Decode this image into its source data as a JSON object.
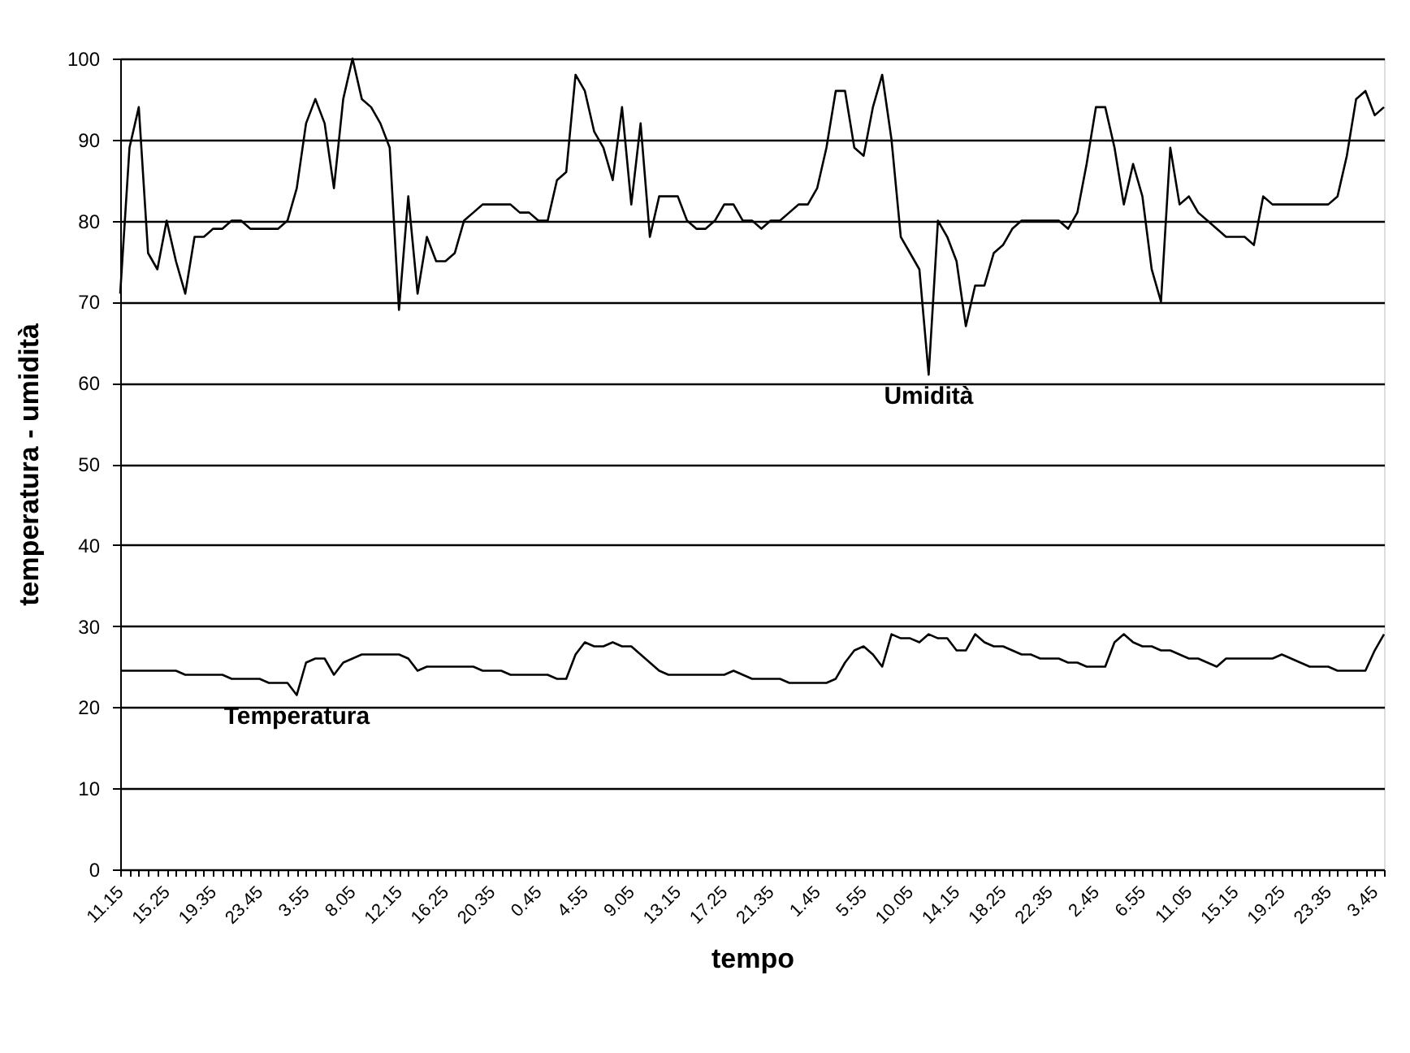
{
  "chart_data": {
    "type": "line",
    "xlabel": "tempo",
    "ylabel": "temperatura - umidità",
    "categories": [
      "11.15",
      null,
      null,
      null,
      null,
      "15.25",
      null,
      null,
      null,
      null,
      "19.35",
      null,
      null,
      null,
      null,
      "23.45",
      null,
      null,
      null,
      null,
      "3.55",
      null,
      null,
      null,
      null,
      "8.05",
      null,
      null,
      null,
      null,
      "12.15",
      null,
      null,
      null,
      null,
      "16.25",
      null,
      null,
      null,
      null,
      "20.35",
      null,
      null,
      null,
      null,
      "0.45",
      null,
      null,
      null,
      null,
      "4.55",
      null,
      null,
      null,
      null,
      "9.05",
      null,
      null,
      null,
      null,
      "13.15",
      null,
      null,
      null,
      null,
      "17.25",
      null,
      null,
      null,
      null,
      "21.35",
      null,
      null,
      null,
      null,
      "1.45",
      null,
      null,
      null,
      null,
      "5.55",
      null,
      null,
      null,
      null,
      "10.05",
      null,
      null,
      null,
      null,
      "14.15",
      null,
      null,
      null,
      null,
      "18.25",
      null,
      null,
      null,
      null,
      "22.35",
      null,
      null,
      null,
      null,
      "2.45",
      null,
      null,
      null,
      null,
      "6.55",
      null,
      null,
      null,
      null,
      "11.05",
      null,
      null,
      null,
      null,
      "15.15",
      null,
      null,
      null,
      null,
      "19.25",
      null,
      null,
      null,
      null,
      "23.35",
      null,
      null,
      null,
      null,
      "3.45",
      null
    ],
    "series": [
      {
        "name": "Umidità",
        "color": "#000000",
        "values": [
          71,
          89,
          94,
          76,
          74,
          80,
          75,
          71,
          78,
          78,
          79,
          79,
          80,
          80,
          79,
          79,
          79,
          79,
          80,
          84,
          92,
          95,
          92,
          84,
          95,
          100,
          95,
          94,
          92,
          89,
          69,
          83,
          71,
          78,
          75,
          75,
          76,
          80,
          81,
          82,
          82,
          82,
          82,
          81,
          81,
          80,
          80,
          85,
          86,
          98,
          96,
          91,
          89,
          85,
          94,
          82,
          92,
          78,
          83,
          83,
          83,
          80,
          79,
          79,
          80,
          82,
          82,
          80,
          80,
          79,
          80,
          80,
          81,
          82,
          82,
          84,
          89,
          96,
          96,
          89,
          88,
          94,
          98,
          90,
          78,
          76,
          74,
          61,
          80,
          78,
          75,
          67,
          72,
          72,
          76,
          77,
          79,
          80,
          80,
          80,
          80,
          80,
          79,
          81,
          87,
          94,
          94,
          89,
          82,
          87,
          83,
          74,
          70,
          89,
          82,
          83,
          81,
          80,
          79,
          78,
          78,
          78,
          77,
          83,
          82,
          82,
          82,
          82,
          82,
          82,
          82,
          83,
          88,
          95,
          96,
          93,
          94
        ]
      },
      {
        "name": "Temperatura",
        "color": "#000000",
        "values": [
          24.5,
          24.5,
          24.5,
          24.5,
          24.5,
          24.5,
          24.5,
          24,
          24,
          24,
          24,
          24,
          23.5,
          23.5,
          23.5,
          23.5,
          23,
          23,
          23,
          21.5,
          25.5,
          26,
          26,
          24,
          25.5,
          26,
          26.5,
          26.5,
          26.5,
          26.5,
          26.5,
          26,
          24.5,
          25,
          25,
          25,
          25,
          25,
          25,
          24.5,
          24.5,
          24.5,
          24,
          24,
          24,
          24,
          24,
          23.5,
          23.5,
          26.5,
          28,
          27.5,
          27.5,
          28,
          27.5,
          27.5,
          26.5,
          25.5,
          24.5,
          24,
          24,
          24,
          24,
          24,
          24,
          24,
          24.5,
          24,
          23.5,
          23.5,
          23.5,
          23.5,
          23,
          23,
          23,
          23,
          23,
          23.5,
          25.5,
          27,
          27.5,
          26.5,
          25,
          29,
          28.5,
          28.5,
          28,
          29,
          28.5,
          28.5,
          27,
          27,
          29,
          28,
          27.5,
          27.5,
          27,
          26.5,
          26.5,
          26,
          26,
          26,
          25.5,
          25.5,
          25,
          25,
          25,
          28,
          29,
          28,
          27.5,
          27.5,
          27,
          27,
          26.5,
          26,
          26,
          25.5,
          25,
          26,
          26,
          26,
          26,
          26,
          26,
          26.5,
          26,
          25.5,
          25,
          25,
          25,
          24.5,
          24.5,
          24.5,
          24.5,
          27,
          29
        ]
      }
    ],
    "ylim": [
      0,
      100
    ],
    "yticks": [
      0,
      10,
      20,
      30,
      40,
      50,
      60,
      70,
      80,
      90,
      100
    ],
    "grid": "y",
    "marker": "none",
    "line_style": "solid"
  }
}
